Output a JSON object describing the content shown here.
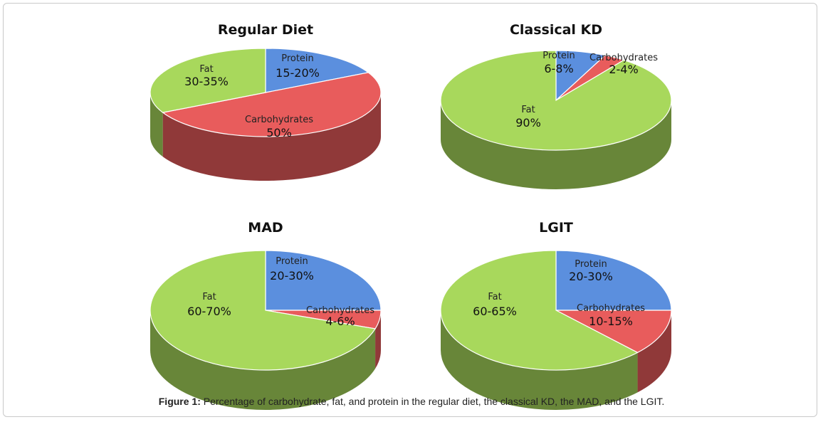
{
  "colors": {
    "protein": "#5b8fde",
    "carbohydrates": "#e85c5c",
    "fat": "#a8d85c"
  },
  "caption": {
    "label": "Figure 1:",
    "text": " Percentage of carbohydrate, fat, and protein in the regular diet, the classical KD, the MAD, and the LGIT."
  },
  "chart_data": [
    {
      "type": "pie",
      "title": "Regular Diet",
      "slices": [
        {
          "name": "Protein",
          "label": "15-20%",
          "value": 17.5,
          "color": "protein"
        },
        {
          "name": "Carbohydrates",
          "label": "50%",
          "value": 50,
          "color": "carbohydrates"
        },
        {
          "name": "Fat",
          "label": "30-35%",
          "value": 32.5,
          "color": "fat"
        }
      ]
    },
    {
      "type": "pie",
      "title": "Classical KD",
      "slices": [
        {
          "name": "Protein",
          "label": "6-8%",
          "value": 7,
          "color": "protein"
        },
        {
          "name": "Carbohydrates",
          "label": "2-4%",
          "value": 3,
          "color": "carbohydrates"
        },
        {
          "name": "Fat",
          "label": "90%",
          "value": 90,
          "color": "fat"
        }
      ]
    },
    {
      "type": "pie",
      "title": "MAD",
      "slices": [
        {
          "name": "Protein",
          "label": "20-30%",
          "value": 25,
          "color": "protein"
        },
        {
          "name": "Carbohydrates",
          "label": "4-6%",
          "value": 5,
          "color": "carbohydrates"
        },
        {
          "name": "Fat",
          "label": "60-70%",
          "value": 70,
          "color": "fat"
        }
      ]
    },
    {
      "type": "pie",
      "title": "LGIT",
      "slices": [
        {
          "name": "Protein",
          "label": "20-30%",
          "value": 25,
          "color": "protein"
        },
        {
          "name": "Carbohydrates",
          "label": "10-15%",
          "value": 12.5,
          "color": "carbohydrates"
        },
        {
          "name": "Fat",
          "label": "60-65%",
          "value": 62.5,
          "color": "fat"
        }
      ]
    }
  ]
}
